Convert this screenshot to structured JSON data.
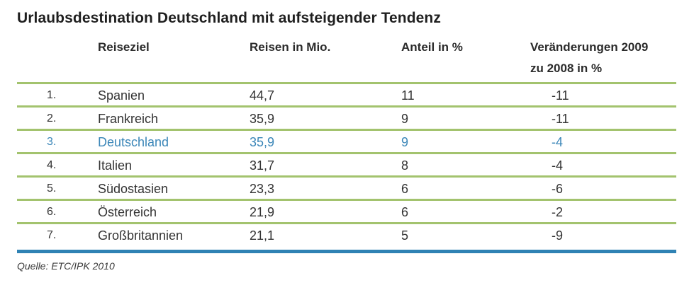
{
  "chart_data": {
    "type": "table",
    "title": "Urlaubsdestination Deutschland mit aufsteigender Tendenz",
    "columns": {
      "rank": "",
      "destination": "Reiseziel",
      "trips": "Reisen in Mio.",
      "share": "Anteil in %",
      "change_line1": "Veränderungen 2009",
      "change_line2": "zu 2008 in %"
    },
    "rows": [
      {
        "rank": "1.",
        "destination": "Spanien",
        "trips": "44,7",
        "share": "11",
        "change": "-11"
      },
      {
        "rank": "2.",
        "destination": "Frankreich",
        "trips": "35,9",
        "share": "9",
        "change": "-11"
      },
      {
        "rank": "3.",
        "destination": "Deutschland",
        "trips": "35,9",
        "share": "9",
        "change": "-4"
      },
      {
        "rank": "4.",
        "destination": "Italien",
        "trips": "31,7",
        "share": "8",
        "change": "-4"
      },
      {
        "rank": "5.",
        "destination": "Südostasien",
        "trips": "23,3",
        "share": "6",
        "change": "-6"
      },
      {
        "rank": "6.",
        "destination": "Österreich",
        "trips": "21,9",
        "share": "6",
        "change": "-2"
      },
      {
        "rank": "7.",
        "destination": "Großbritannien",
        "trips": "21,1",
        "share": "5",
        "change": "-9"
      }
    ],
    "highlight_row": 2,
    "source": "Quelle: ETC/IPK 2010"
  },
  "colors": {
    "row_divider": "#a3c36e",
    "highlight_text": "#3b86b8",
    "bottom_bar": "#2f82b4"
  }
}
